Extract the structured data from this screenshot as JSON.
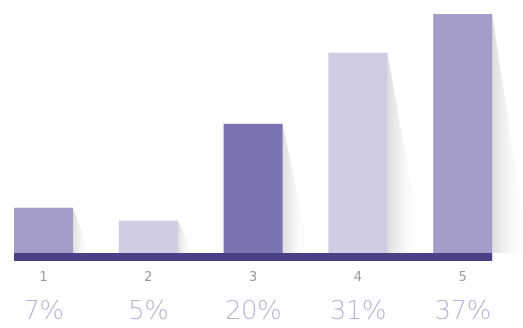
{
  "chart_data": {
    "type": "bar",
    "categories": [
      "1",
      "2",
      "3",
      "4",
      "5"
    ],
    "values": [
      7,
      5,
      20,
      31,
      37
    ],
    "value_labels": [
      "7%",
      "5%",
      "20%",
      "31%",
      "37%"
    ],
    "ylim": [
      0,
      37
    ],
    "colors": [
      "#a29dc9",
      "#cecbe3",
      "#7a74b0",
      "#cecbe3",
      "#a29dc9"
    ],
    "baseline_color": "#4a4188",
    "grid": false,
    "legend": "none"
  }
}
